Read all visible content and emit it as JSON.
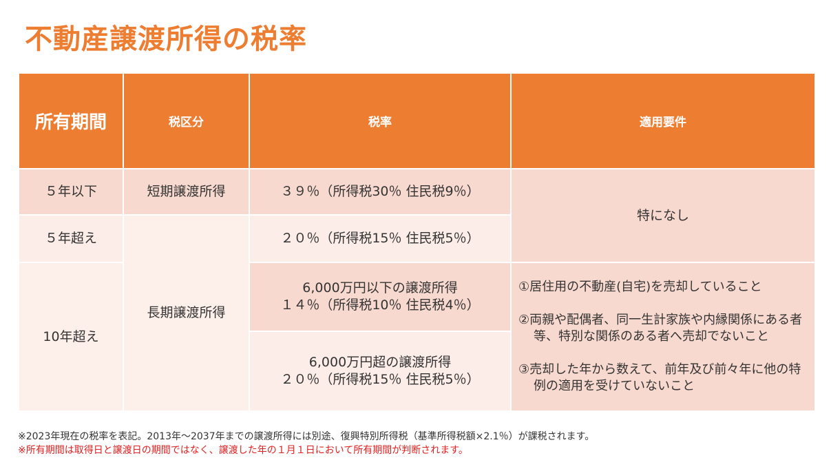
{
  "title": "不動産譲渡所得の税率",
  "table": {
    "headers": [
      "所有期間",
      "税区分",
      "税率",
      "適用要件"
    ],
    "rows": {
      "r1": {
        "period": "５年以下",
        "category": "短期譲渡所得",
        "rate": "３９％（所得税30％ 住民税9％）"
      },
      "r2": {
        "period": "５年超え",
        "rate": "２０％（所得税15％ 住民税5％）"
      },
      "r3": {
        "period": "10年超え",
        "category": "長期譲渡所得",
        "rate_a_line1": "6,000万円以下の譲渡所得",
        "rate_a_line2": "１４％（所得税10％ 住民税4％）",
        "rate_b_line1": "6,000万円超の譲渡所得",
        "rate_b_line2": "２０％（所得税15％ 住民税5％）"
      }
    },
    "requirement_none": "特になし",
    "requirements": [
      "①居住用の不動産(自宅)を売却していること",
      "②両親や配偶者、同一生計家族や内縁関係にある者等、特別な関係のある者へ売却でないこと",
      "③売却した年から数えて、前年及び前々年に他の特例の適用を受けていないこと"
    ]
  },
  "notes": {
    "note1": "※2023年現在の税率を表記。2013年～2037年までの譲渡所得には別途、復興特別所得税（基準所得税額×2.1％）が課税されます。",
    "note2": "※所有期間は取得日と譲渡日の期間ではなく、譲渡した年の１月１日において所有期間が判断されます。"
  },
  "colors": {
    "accent": "#ED7D31",
    "cell_dark": "#F8D9CF",
    "cell_light": "#FCEDE8",
    "note_red": "#E02020"
  }
}
